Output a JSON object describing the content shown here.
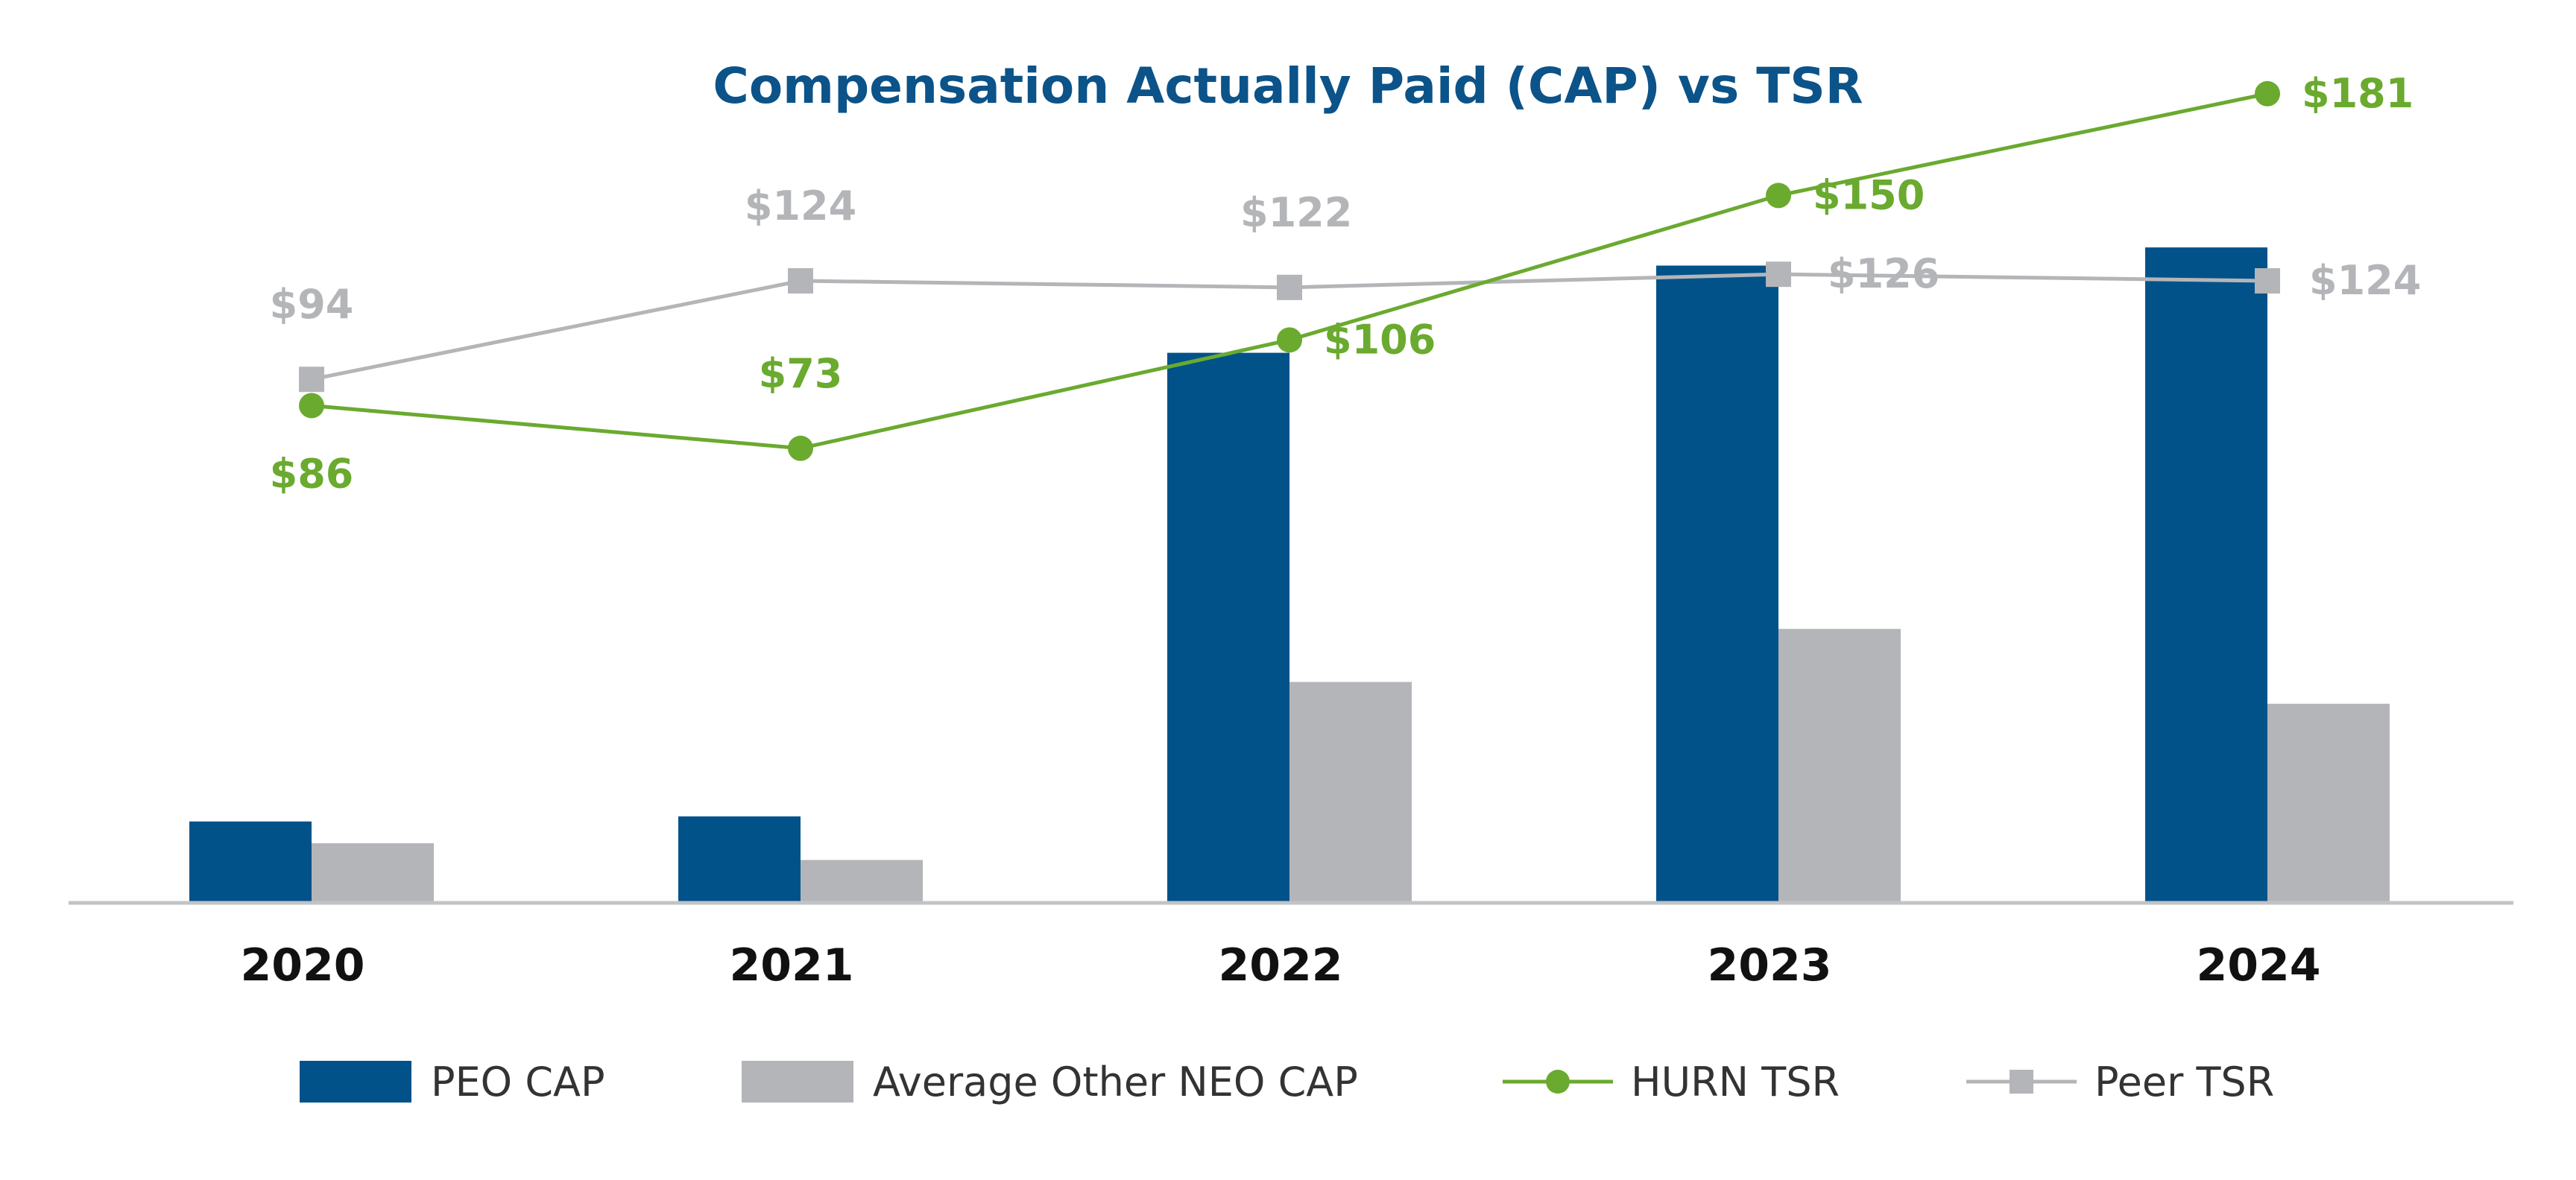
{
  "chart_data": {
    "type": "bar",
    "title": "Compensation Actually Paid (CAP) vs TSR",
    "categories": [
      "2020",
      "2021",
      "2022",
      "2023",
      "2024"
    ],
    "series": [
      {
        "name": "PEO CAP",
        "kind": "bar",
        "color": "#02528a",
        "values": [
          1.1,
          1.17,
          7.55,
          8.75,
          9.0
        ]
      },
      {
        "name": "Average Other NEO CAP",
        "kind": "bar",
        "color": "#b4b5b8",
        "values": [
          0.8,
          0.57,
          3.02,
          3.75,
          2.72
        ]
      },
      {
        "name": "HURN TSR",
        "kind": "line",
        "marker": "circle",
        "color": "#6aaa2f",
        "values": [
          86,
          73,
          106,
          150,
          181
        ],
        "labels": [
          "$86",
          "$73",
          "$106",
          "$150",
          "$181"
        ]
      },
      {
        "name": "Peer TSR",
        "kind": "line",
        "marker": "square",
        "color": "#b4b5b8",
        "values": [
          94,
          124,
          122,
          126,
          124
        ],
        "labels": [
          "$94",
          "$124",
          "$122",
          "$126",
          "$124"
        ]
      }
    ],
    "bar_axis": {
      "ylim": [
        0,
        12.2
      ],
      "visible": false
    },
    "line_axis": {
      "ylim": [
        -65,
        205
      ],
      "visible": false
    },
    "grid": false,
    "legend": "bottom",
    "colors": {
      "title": "#0b5389",
      "axis": "#c2c3c6"
    }
  }
}
